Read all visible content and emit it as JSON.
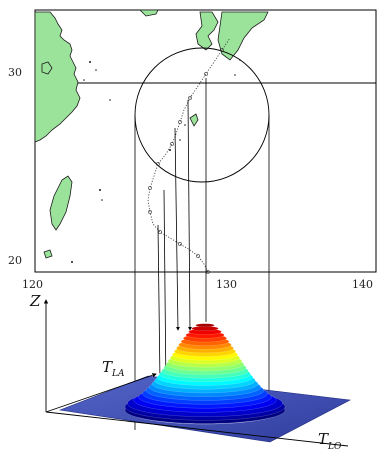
{
  "map": {
    "lat_labels": [
      "30",
      "20"
    ],
    "lon_labels": [
      "120",
      "130",
      "140"
    ],
    "land_color": "#9be39b",
    "track_color": "#333333"
  },
  "surface": {
    "z_label": "Z",
    "t_la_label": "T",
    "t_la_sub": "LA",
    "t_lo_label": "T",
    "t_lo_sub": "LO",
    "plane_color": "#3f4fb5",
    "colormap": "jet"
  }
}
